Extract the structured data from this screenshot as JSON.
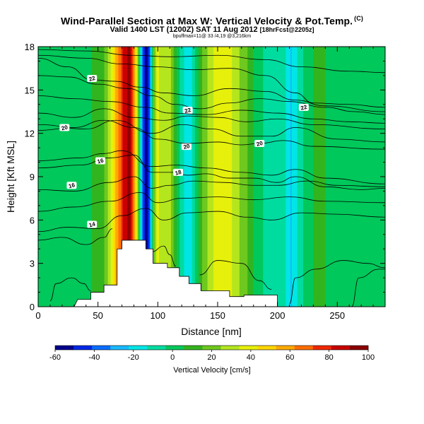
{
  "title": "Wind-Parallel Section at Max W: Vertical Velocity & Pot.Temp.",
  "title_mark": "(C)",
  "subtitle_main": "Valid 1400 LST (1200Z) SAT 11 Aug 2012",
  "subtitle_tag": "[18hrFcst@2205z]",
  "run_info": "bpuffmax=11@ 33 /4,19 @3,216km",
  "chart_data": {
    "type": "heatmap",
    "xlabel": "Distance [nm]",
    "ylabel": "Height [Kft MSL]",
    "xlim": [
      0,
      290
    ],
    "ylim": [
      0,
      18
    ],
    "xticks": [
      "0",
      "50",
      "100",
      "150",
      "200",
      "250"
    ],
    "xtick_values": [
      0,
      50,
      100,
      150,
      200,
      250
    ],
    "yticks": [
      "0",
      "3",
      "6",
      "9",
      "12",
      "15",
      "18"
    ],
    "ytick_values": [
      0,
      3,
      6,
      9,
      12,
      15,
      18
    ],
    "colorbar": {
      "label": "Vertical Velocity [cm/s]",
      "ticks": [
        "-60",
        "-40",
        "-20",
        "0",
        "20",
        "40",
        "60",
        "80",
        "100"
      ],
      "tick_values": [
        -60,
        -40,
        -20,
        0,
        20,
        40,
        60,
        80,
        100
      ],
      "min": -60,
      "max": 100,
      "colors": [
        "#00008c",
        "#0028e6",
        "#0a6eff",
        "#19b9ff",
        "#00e6e6",
        "#00dca0",
        "#00c85a",
        "#32b41e",
        "#6ec81e",
        "#b4e61e",
        "#e6f00a",
        "#ffd700",
        "#ffaa00",
        "#ff6e00",
        "#f02800",
        "#c80000",
        "#8c0000"
      ]
    },
    "velocity_columns": [
      {
        "x": 0,
        "w": 0
      },
      {
        "x": 10,
        "w": 3
      },
      {
        "x": 20,
        "w": 2
      },
      {
        "x": 30,
        "w": 0
      },
      {
        "x": 40,
        "w": 4
      },
      {
        "x": 50,
        "w": 8
      },
      {
        "x": 57,
        "w": 18
      },
      {
        "x": 62,
        "w": 40
      },
      {
        "x": 67,
        "w": 62
      },
      {
        "x": 72,
        "w": 84
      },
      {
        "x": 77,
        "w": 95
      },
      {
        "x": 81,
        "w": 55
      },
      {
        "x": 84,
        "w": 10
      },
      {
        "x": 87,
        "w": -30
      },
      {
        "x": 90,
        "w": -60
      },
      {
        "x": 93,
        "w": -40
      },
      {
        "x": 96,
        "w": 12
      },
      {
        "x": 100,
        "w": 40
      },
      {
        "x": 104,
        "w": 24
      },
      {
        "x": 108,
        "w": 34
      },
      {
        "x": 112,
        "w": 22
      },
      {
        "x": 117,
        "w": 0
      },
      {
        "x": 122,
        "w": -12
      },
      {
        "x": 126,
        "w": -22
      },
      {
        "x": 131,
        "w": -6
      },
      {
        "x": 137,
        "w": 14
      },
      {
        "x": 143,
        "w": 30
      },
      {
        "x": 150,
        "w": 40
      },
      {
        "x": 158,
        "w": 38
      },
      {
        "x": 166,
        "w": 28
      },
      {
        "x": 175,
        "w": 14
      },
      {
        "x": 184,
        "w": 0
      },
      {
        "x": 192,
        "w": -8
      },
      {
        "x": 200,
        "w": -4
      },
      {
        "x": 207,
        "w": -14
      },
      {
        "x": 212,
        "w": -24
      },
      {
        "x": 218,
        "w": -10
      },
      {
        "x": 225,
        "w": 4
      },
      {
        "x": 235,
        "w": 8
      },
      {
        "x": 245,
        "w": 4
      },
      {
        "x": 255,
        "w": 2
      },
      {
        "x": 265,
        "w": 6
      },
      {
        "x": 275,
        "w": 2
      },
      {
        "x": 290,
        "w": 0
      }
    ],
    "terrain": [
      [
        0,
        0
      ],
      [
        30,
        0
      ],
      [
        33,
        0.5
      ],
      [
        44,
        0.5
      ],
      [
        44,
        1.0
      ],
      [
        55,
        1.0
      ],
      [
        55,
        1.5
      ],
      [
        66,
        1.5
      ],
      [
        66,
        4.0
      ],
      [
        70,
        4.0
      ],
      [
        70,
        4.6
      ],
      [
        90,
        4.6
      ],
      [
        90,
        4.0
      ],
      [
        96,
        4.0
      ],
      [
        96,
        3.0
      ],
      [
        108,
        3.0
      ],
      [
        108,
        2.7
      ],
      [
        118,
        2.7
      ],
      [
        118,
        2.1
      ],
      [
        126,
        2.1
      ],
      [
        126,
        1.6
      ],
      [
        136,
        1.6
      ],
      [
        136,
        1.1
      ],
      [
        160,
        1.1
      ],
      [
        160,
        0.7
      ],
      [
        172,
        0.7
      ],
      [
        172,
        0.8
      ],
      [
        200,
        0.8
      ],
      [
        200,
        0
      ],
      [
        290,
        0
      ]
    ],
    "theta_contours": [
      {
        "label": "14",
        "points": [
          [
            0,
            5.2
          ],
          [
            25,
            5.5
          ],
          [
            50,
            5.4
          ],
          [
            70,
            6.3
          ],
          [
            90,
            6.8
          ],
          [
            105,
            6.0
          ],
          [
            125,
            6.5
          ],
          [
            150,
            6.6
          ],
          [
            175,
            6.2
          ],
          [
            195,
            6.0
          ],
          [
            220,
            6.5
          ],
          [
            250,
            6.4
          ],
          [
            290,
            6.2
          ]
        ],
        "label_at": [
          45,
          5.7
        ]
      },
      {
        "label": "16",
        "points": [
          [
            0,
            8.1
          ],
          [
            30,
            8.0
          ],
          [
            60,
            8.6
          ],
          [
            80,
            9.0
          ],
          [
            95,
            8.2
          ],
          [
            110,
            8.4
          ],
          [
            130,
            8.7
          ],
          [
            155,
            8.6
          ],
          [
            180,
            8.4
          ],
          [
            200,
            8.4
          ],
          [
            225,
            8.7
          ],
          [
            250,
            8.4
          ],
          [
            290,
            8.3
          ]
        ],
        "label_at": [
          28,
          8.4
        ]
      },
      {
        "label": "18",
        "points": [
          [
            0,
            9.6
          ],
          [
            35,
            9.8
          ],
          [
            60,
            10.3
          ],
          [
            80,
            10.5
          ],
          [
            95,
            9.3
          ],
          [
            112,
            9.3
          ],
          [
            125,
            9.1
          ],
          [
            140,
            9.2
          ],
          [
            160,
            8.9
          ],
          [
            180,
            8.9
          ],
          [
            200,
            8.6
          ],
          [
            215,
            9.0
          ],
          [
            240,
            8.3
          ],
          [
            270,
            8.1
          ],
          [
            290,
            8.2
          ]
        ],
        "label_at": [
          117,
          9.3
        ]
      },
      {
        "label": "16",
        "points": [
          [
            0,
            10.1
          ],
          [
            35,
            10.3
          ],
          [
            55,
            10.6
          ],
          [
            70,
            10.8
          ],
          [
            95,
            9.7
          ],
          [
            115,
            9.8
          ],
          [
            140,
            9.6
          ],
          [
            170,
            9.3
          ],
          [
            195,
            9.1
          ],
          [
            215,
            9.5
          ],
          [
            240,
            8.9
          ],
          [
            290,
            8.5
          ]
        ],
        "label_at": [
          52,
          10.1
        ]
      },
      {
        "label": "20",
        "points": [
          [
            0,
            12.6
          ],
          [
            40,
            12.3
          ],
          [
            65,
            12.9
          ],
          [
            95,
            12.0
          ],
          [
            120,
            12.6
          ],
          [
            145,
            12.3
          ],
          [
            170,
            11.8
          ],
          [
            195,
            11.8
          ],
          [
            215,
            12.4
          ],
          [
            250,
            11.6
          ],
          [
            290,
            11.4
          ]
        ],
        "label_at": [
          124,
          11.1
        ]
      },
      {
        "label": "20",
        "points": [
          [
            0,
            12.2
          ],
          [
            30,
            12.4
          ],
          [
            55,
            12.9
          ],
          [
            80,
            12.4
          ],
          [
            100,
            11.6
          ],
          [
            125,
            11.3
          ],
          [
            150,
            11.4
          ],
          [
            170,
            11.2
          ],
          [
            185,
            11.3
          ],
          [
            205,
            11.5
          ],
          [
            230,
            11.1
          ],
          [
            290,
            10.9
          ]
        ],
        "label_at": [
          185,
          11.3
        ]
      },
      {
        "label": "20",
        "points": [
          [
            0,
            13.4
          ],
          [
            30,
            13.1
          ],
          [
            55,
            13.7
          ],
          [
            80,
            13.1
          ],
          [
            105,
            12.9
          ],
          [
            125,
            13.2
          ],
          [
            150,
            13.1
          ],
          [
            175,
            12.8
          ],
          [
            200,
            13.0
          ],
          [
            230,
            12.6
          ],
          [
            290,
            12.3
          ]
        ],
        "label_at": [
          22,
          12.4
        ]
      },
      {
        "label": "22",
        "points": [
          [
            0,
            16.0
          ],
          [
            25,
            15.9
          ],
          [
            50,
            15.4
          ],
          [
            75,
            15.1
          ],
          [
            95,
            14.6
          ],
          [
            115,
            14.0
          ],
          [
            135,
            13.7
          ],
          [
            160,
            14.1
          ],
          [
            185,
            14.4
          ],
          [
            210,
            14.2
          ],
          [
            240,
            13.8
          ],
          [
            265,
            13.5
          ],
          [
            290,
            13.3
          ]
        ],
        "label_at": [
          125,
          13.6
        ]
      },
      {
        "label": "22",
        "points": [
          [
            0,
            17.2
          ],
          [
            25,
            16.6
          ],
          [
            45,
            15.7
          ],
          [
            65,
            15.6
          ],
          [
            85,
            15.2
          ],
          [
            105,
            14.8
          ],
          [
            130,
            14.6
          ],
          [
            160,
            15.1
          ],
          [
            190,
            14.9
          ],
          [
            215,
            14.3
          ],
          [
            240,
            13.9
          ],
          [
            290,
            13.5
          ]
        ],
        "label_at": [
          45,
          15.8
        ]
      },
      {
        "label": "22",
        "points": [
          [
            0,
            17.4
          ],
          [
            40,
            17.2
          ],
          [
            70,
            16.8
          ],
          [
            100,
            16.6
          ],
          [
            130,
            16.4
          ],
          [
            160,
            16.5
          ],
          [
            190,
            16.0
          ],
          [
            215,
            14.8
          ],
          [
            230,
            14.1
          ],
          [
            260,
            14.0
          ],
          [
            290,
            13.8
          ]
        ],
        "label_at": [
          222,
          13.8
        ]
      },
      {
        "label": "",
        "points": [
          [
            0,
            14.6
          ],
          [
            30,
            14.4
          ],
          [
            60,
            14.2
          ],
          [
            90,
            13.8
          ],
          [
            110,
            13.4
          ],
          [
            140,
            13.3
          ],
          [
            170,
            13.6
          ],
          [
            200,
            13.4
          ],
          [
            230,
            13.0
          ],
          [
            260,
            12.8
          ],
          [
            290,
            12.7
          ]
        ],
        "label_at": null
      },
      {
        "label": "",
        "points": [
          [
            0,
            17.8
          ],
          [
            40,
            17.7
          ],
          [
            80,
            17.4
          ],
          [
            110,
            17.3
          ],
          [
            150,
            17.4
          ],
          [
            190,
            17.1
          ],
          [
            220,
            16.6
          ],
          [
            260,
            16.3
          ],
          [
            290,
            16.2
          ]
        ],
        "label_at": null
      },
      {
        "label": "",
        "points": [
          [
            0,
            6.6
          ],
          [
            30,
            6.9
          ],
          [
            60,
            7.3
          ],
          [
            85,
            7.9
          ],
          [
            100,
            7.2
          ],
          [
            120,
            7.5
          ],
          [
            150,
            7.6
          ],
          [
            180,
            7.4
          ],
          [
            210,
            7.6
          ],
          [
            240,
            7.3
          ],
          [
            290,
            7.2
          ]
        ],
        "label_at": null
      },
      {
        "label": "",
        "points": [
          [
            0,
            4.6
          ],
          [
            20,
            4.8
          ],
          [
            40,
            4.3
          ],
          [
            55,
            4.8
          ],
          [
            62,
            5.4
          ]
        ],
        "label_at": null
      },
      {
        "label": "",
        "points": [
          [
            95,
            3.8
          ],
          [
            105,
            4.2
          ],
          [
            110,
            3.6
          ],
          [
            115,
            2.8
          ]
        ],
        "label_at": null
      },
      {
        "label": "",
        "points": [
          [
            135,
            2.2
          ],
          [
            150,
            3.2
          ],
          [
            170,
            3.0
          ],
          [
            185,
            1.8
          ],
          [
            195,
            1.2
          ]
        ],
        "label_at": null
      },
      {
        "label": "",
        "points": [
          [
            210,
            0.2
          ],
          [
            215,
            2.0
          ],
          [
            232,
            2.6
          ],
          [
            255,
            3.2
          ],
          [
            275,
            3.0
          ],
          [
            290,
            2.7
          ]
        ],
        "label_at": null
      },
      {
        "label": "",
        "points": [
          [
            10,
            0.4
          ],
          [
            15,
            1.6
          ],
          [
            28,
            2.0
          ],
          [
            38,
            1.6
          ],
          [
            44,
            1.1
          ]
        ],
        "label_at": null
      },
      {
        "label": "",
        "points": [
          [
            262,
            0.0
          ],
          [
            268,
            2.0
          ],
          [
            285,
            2.6
          ],
          [
            290,
            2.6
          ]
        ],
        "label_at": null
      }
    ]
  }
}
